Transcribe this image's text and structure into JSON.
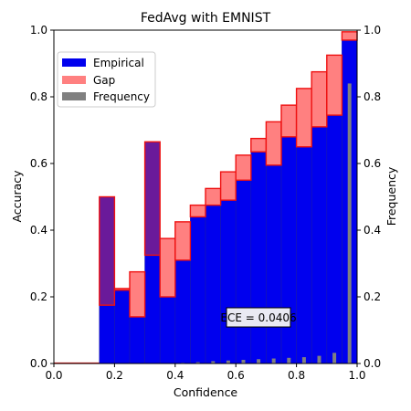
{
  "chart_data": {
    "type": "bar",
    "title": "FedAvg with EMNIST",
    "xlabel": "Confidence",
    "ylabel": "Accuracy",
    "y2label": "Frequency",
    "xlim": [
      0.0,
      1.0
    ],
    "ylim": [
      0.0,
      1.0
    ],
    "y2lim": [
      0.0,
      1.0
    ],
    "x_ticks": [
      "0.0",
      "0.2",
      "0.4",
      "0.6",
      "0.8",
      "1.0"
    ],
    "y_ticks": [
      "0.0",
      "0.2",
      "0.4",
      "0.6",
      "0.8",
      "1.0"
    ],
    "y2_ticks": [
      "0.0",
      "0.2",
      "0.4",
      "0.6",
      "0.8",
      "1.0"
    ],
    "bin_width": 0.05,
    "bins": [
      {
        "start": 0.15,
        "empirical": 0.5,
        "confidence": 0.175,
        "frequency": 0.0
      },
      {
        "start": 0.2,
        "empirical": 0.22,
        "confidence": 0.225,
        "frequency": 0.0
      },
      {
        "start": 0.25,
        "empirical": 0.14,
        "confidence": 0.275,
        "frequency": 0.0
      },
      {
        "start": 0.3,
        "empirical": 0.665,
        "confidence": 0.325,
        "frequency": 0.0
      },
      {
        "start": 0.35,
        "empirical": 0.2,
        "confidence": 0.375,
        "frequency": 0.0
      },
      {
        "start": 0.4,
        "empirical": 0.31,
        "confidence": 0.425,
        "frequency": 0.002
      },
      {
        "start": 0.45,
        "empirical": 0.44,
        "confidence": 0.475,
        "frequency": 0.004
      },
      {
        "start": 0.5,
        "empirical": 0.475,
        "confidence": 0.525,
        "frequency": 0.007
      },
      {
        "start": 0.55,
        "empirical": 0.49,
        "confidence": 0.575,
        "frequency": 0.009
      },
      {
        "start": 0.6,
        "empirical": 0.55,
        "confidence": 0.625,
        "frequency": 0.011
      },
      {
        "start": 0.65,
        "empirical": 0.635,
        "confidence": 0.675,
        "frequency": 0.013
      },
      {
        "start": 0.7,
        "empirical": 0.595,
        "confidence": 0.725,
        "frequency": 0.015
      },
      {
        "start": 0.75,
        "empirical": 0.68,
        "confidence": 0.775,
        "frequency": 0.017
      },
      {
        "start": 0.8,
        "empirical": 0.65,
        "confidence": 0.825,
        "frequency": 0.019
      },
      {
        "start": 0.85,
        "empirical": 0.71,
        "confidence": 0.875,
        "frequency": 0.023
      },
      {
        "start": 0.9,
        "empirical": 0.745,
        "confidence": 0.925,
        "frequency": 0.032
      },
      {
        "start": 0.95,
        "empirical": 0.97,
        "confidence": 0.995,
        "frequency": 0.84
      }
    ],
    "legend": {
      "placement": "upper-left",
      "entries": [
        {
          "label": "Empirical",
          "color": "#0000ee"
        },
        {
          "label": "Gap",
          "color": "#ff8080"
        },
        {
          "label": "Frequency",
          "color": "#808080"
        }
      ]
    },
    "annotation": "ECE = 0.0406",
    "colors": {
      "empirical": "#0000ee",
      "empirical_edge": "#1a1aaa",
      "gap": "#ff8080",
      "gap_edge": "#ee1111",
      "overlap": "#6a1a9a",
      "frequency": "#808080"
    }
  }
}
